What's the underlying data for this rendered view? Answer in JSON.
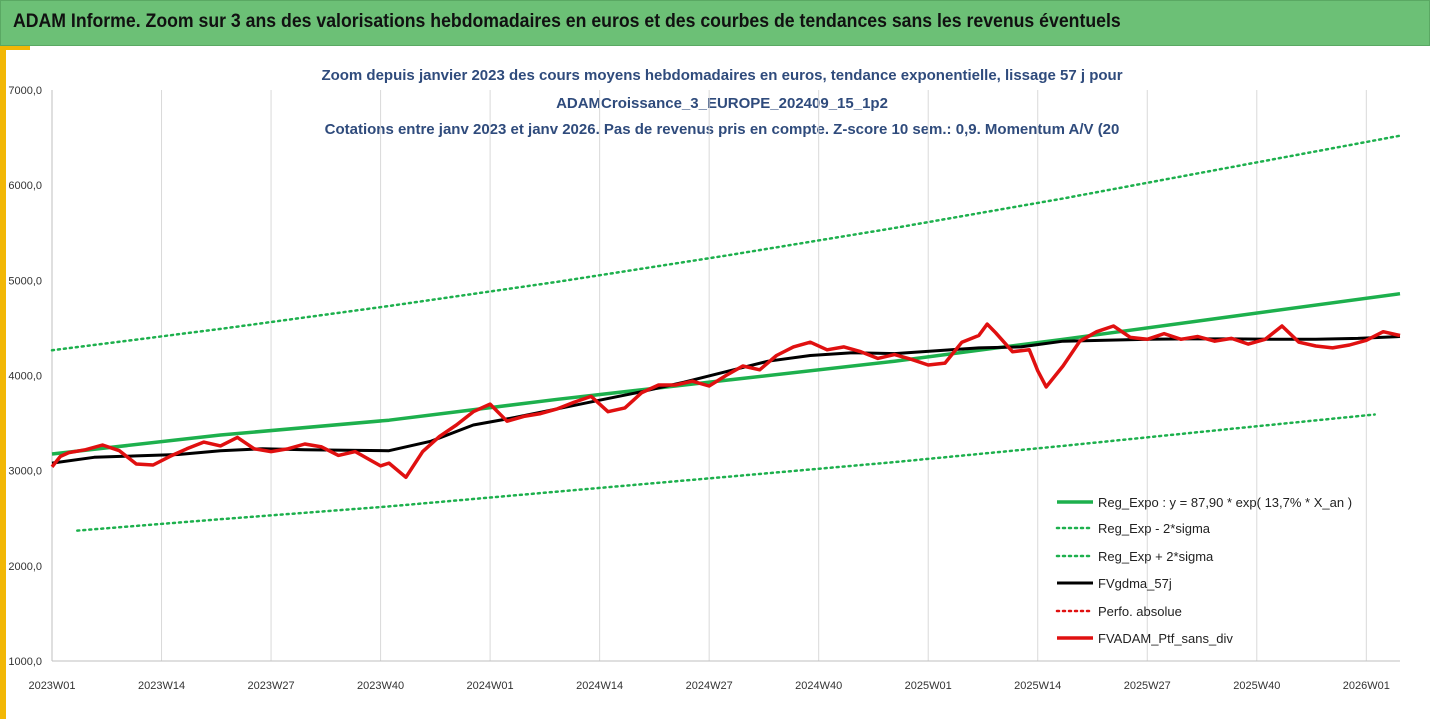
{
  "banner": {
    "title": "ADAM Informe. Zoom sur 3 ans des valorisations hebdomadaires en euros et des courbes de tendances sans les revenus éventuels"
  },
  "colors": {
    "banner_bg": "#6cc076",
    "accent": "#f2b705",
    "trend": "#1db04d",
    "smooth": "#000000",
    "perf": "#e01010",
    "portfolio": "#e01010"
  },
  "chart_data": {
    "type": "line",
    "title_lines": [
      "Zoom depuis janvier 2023 des cours moyens hebdomadaires  en euros, tendance exponentielle, lissage 57 j pour",
      "ADAMCroissance_3_EUROPE_202409_15_1p2",
      "Cotations entre janv 2023 et janv 2026. Pas de revenus pris en compte. Z-score 10 sem.: 0,9. Momentum A/V (20"
    ],
    "ylim": [
      1000,
      7000
    ],
    "ytick_labels": [
      "1000,0",
      "2000,0",
      "3000,0",
      "4000,0",
      "5000,0",
      "6000,0",
      "7000,0"
    ],
    "ytick_values": [
      1000,
      2000,
      3000,
      4000,
      5000,
      6000,
      7000
    ],
    "xlim": [
      0,
      160
    ],
    "xtick_labels": [
      "2023W01",
      "2023W14",
      "2023W27",
      "2023W40",
      "2024W01",
      "2024W14",
      "2024W27",
      "2024W40",
      "2025W01",
      "2025W14",
      "2025W27",
      "2025W40",
      "2026W01"
    ],
    "xtick_values": [
      0,
      13,
      26,
      39,
      52,
      65,
      78,
      91,
      104,
      117,
      130,
      143,
      156
    ],
    "grid": "vertical",
    "legend_placement": "bottom-right",
    "series": [
      {
        "name": "Reg_Expo : y = 87,90 * exp( 13,7% *  X_an )",
        "style": "solid-thick",
        "x": [
          0,
          20,
          40,
          60,
          80,
          100,
          120,
          140,
          160
        ],
        "y": [
          3175,
          3375,
          3530,
          3750,
          3950,
          4150,
          4380,
          4620,
          4860
        ]
      },
      {
        "name": "Reg_Exp - 2*sigma",
        "style": "dotted",
        "x": [
          3,
          20,
          40,
          60,
          80,
          100,
          120,
          140,
          157
        ],
        "y": [
          2370,
          2490,
          2625,
          2780,
          2935,
          3090,
          3260,
          3440,
          3590
        ]
      },
      {
        "name": "Reg_Exp + 2*sigma",
        "style": "dotted",
        "x": [
          0,
          20,
          40,
          60,
          80,
          100,
          120,
          140,
          160
        ],
        "y": [
          4265,
          4490,
          4730,
          4985,
          5260,
          5550,
          5860,
          6190,
          6520
        ]
      },
      {
        "name": "FVgdma_57j",
        "style": "solid-thick",
        "x": [
          0,
          5,
          10,
          15,
          20,
          25,
          30,
          35,
          40,
          45,
          50,
          55,
          60,
          65,
          70,
          75,
          80,
          85,
          90,
          95,
          100,
          105,
          110,
          115,
          120,
          125,
          130,
          135,
          140,
          145,
          150,
          155,
          160
        ],
        "y": [
          3080,
          3140,
          3155,
          3170,
          3210,
          3230,
          3220,
          3215,
          3210,
          3310,
          3480,
          3560,
          3650,
          3740,
          3830,
          3930,
          4040,
          4150,
          4210,
          4240,
          4230,
          4260,
          4290,
          4300,
          4360,
          4370,
          4380,
          4385,
          4385,
          4380,
          4380,
          4390,
          4410
        ]
      },
      {
        "name": "Perfo. absolue",
        "style": "dotted",
        "x": [],
        "y": []
      },
      {
        "name": "FVADAM_Ptf_sans_div",
        "style": "solid-thick",
        "x": [
          0,
          1,
          2,
          4,
          6,
          8,
          10,
          12,
          14,
          16,
          18,
          20,
          22,
          24,
          26,
          28,
          30,
          32,
          34,
          36,
          38,
          39,
          40,
          42,
          44,
          46,
          48,
          50,
          52,
          54,
          56,
          58,
          60,
          62,
          64,
          66,
          68,
          70,
          72,
          74,
          76,
          78,
          80,
          82,
          84,
          86,
          88,
          90,
          92,
          94,
          96,
          98,
          100,
          102,
          104,
          106,
          108,
          110,
          111,
          112,
          114,
          116,
          117,
          118,
          120,
          122,
          124,
          126,
          128,
          130,
          132,
          134,
          136,
          138,
          140,
          142,
          144,
          146,
          148,
          150,
          152,
          154,
          156,
          158,
          160
        ],
        "y": [
          3040,
          3150,
          3190,
          3220,
          3270,
          3210,
          3070,
          3060,
          3150,
          3230,
          3300,
          3260,
          3350,
          3230,
          3200,
          3230,
          3280,
          3250,
          3160,
          3200,
          3100,
          3050,
          3080,
          2930,
          3200,
          3360,
          3480,
          3620,
          3700,
          3520,
          3570,
          3600,
          3650,
          3720,
          3780,
          3620,
          3660,
          3820,
          3900,
          3900,
          3940,
          3890,
          4000,
          4100,
          4060,
          4210,
          4300,
          4350,
          4270,
          4300,
          4250,
          4180,
          4220,
          4170,
          4110,
          4130,
          4350,
          4420,
          4540,
          4450,
          4250,
          4270,
          4050,
          3880,
          4100,
          4360,
          4460,
          4520,
          4400,
          4380,
          4440,
          4380,
          4410,
          4360,
          4390,
          4330,
          4380,
          4520,
          4350,
          4310,
          4290,
          4320,
          4370,
          4460,
          4420
        ]
      }
    ]
  }
}
